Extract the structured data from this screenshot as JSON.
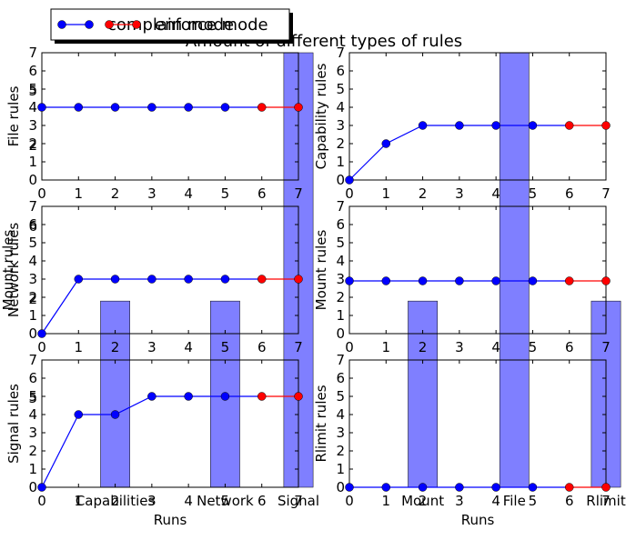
{
  "chart_data": {
    "type": "line",
    "title": "Amount of different types of rules",
    "legend": {
      "placement": "top-left",
      "entries": [
        {
          "label": "complain mode",
          "color": "#0000ff"
        },
        {
          "label": "enforce mode",
          "color": "#ff0000"
        }
      ]
    },
    "colors": {
      "complain": "#0000ff",
      "enforce": "#ff0000",
      "band": "#7f7fff"
    },
    "xlim": [
      0,
      7
    ],
    "ylim": [
      0,
      7
    ],
    "xticks": [
      "0",
      "1",
      "2",
      "3",
      "4",
      "5",
      "6",
      "7"
    ],
    "yticks": [
      "0",
      "1",
      "2",
      "3",
      "4",
      "5",
      "6",
      "7"
    ],
    "xlabel": "Runs",
    "grid": false,
    "enforce_start_run": 6,
    "panels": [
      {
        "ylabel": "File rules",
        "x": [
          0,
          1,
          2,
          3,
          4,
          5,
          6,
          7
        ],
        "values": [
          4,
          4,
          4,
          4,
          4,
          4,
          4,
          4
        ],
        "extra_yticks": [
          "5",
          "2"
        ]
      },
      {
        "ylabel": "Capability rules",
        "x": [
          0,
          1,
          2,
          3,
          4,
          5,
          6,
          7
        ],
        "values": [
          0,
          2,
          3,
          3,
          3,
          3,
          3,
          3
        ]
      },
      {
        "ylabel": "Network rules",
        "x": [
          0,
          1,
          2,
          3,
          4,
          5,
          6,
          7
        ],
        "values": [
          0,
          3,
          3,
          3,
          3,
          3,
          3,
          3
        ],
        "overlap_ylabel": "Mount rules",
        "extra_yticks": [
          "6",
          "2"
        ]
      },
      {
        "ylabel": "Mount rules",
        "x": [
          0,
          1,
          2,
          3,
          4,
          5,
          6,
          7
        ],
        "values": [
          2.9,
          2.9,
          2.9,
          2.9,
          2.9,
          2.9,
          2.9,
          2.9
        ]
      },
      {
        "ylabel": "Signal rules",
        "x": [
          0,
          1,
          2,
          3,
          4,
          5,
          6,
          7
        ],
        "values": [
          0,
          4,
          4,
          5,
          5,
          5,
          5,
          5
        ],
        "extra_yticks": [
          "5"
        ]
      },
      {
        "ylabel": "Rlimit rules",
        "x": [
          0,
          1,
          2,
          3,
          4,
          5,
          6,
          7
        ],
        "values": [
          0,
          0,
          0,
          0,
          0,
          0,
          0,
          0
        ]
      }
    ],
    "bar_overlay": {
      "categories": [
        "Capabilities",
        "Network",
        "Signal",
        "Mount",
        "File",
        "Rlimit"
      ],
      "x": [
        2,
        5,
        7,
        2,
        4.5,
        7
      ],
      "column": [
        0,
        0,
        0,
        1,
        1,
        1
      ],
      "values": [
        3,
        3,
        7,
        3,
        7,
        3
      ]
    }
  }
}
